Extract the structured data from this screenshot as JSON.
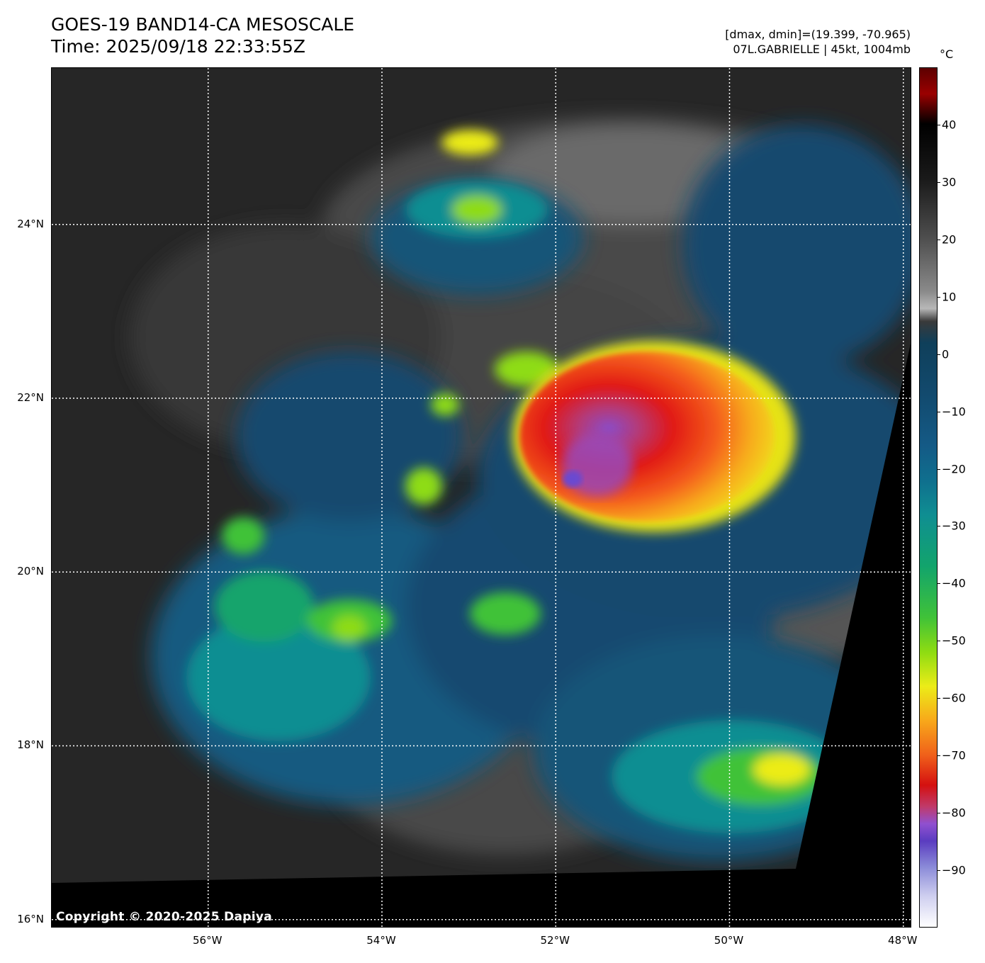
{
  "header": {
    "title": "GOES-19 BAND14-CA MESOSCALE",
    "time": "Time: 2025/09/18 22:33:55Z",
    "range_line": "[dmax, dmin]=(19.399, -70.965)",
    "storm_line": "07L.GABRIELLE | 45kt, 1004mb"
  },
  "map": {
    "extent": {
      "lon_min": -57.8,
      "lon_max": -47.9,
      "lat_min": 15.9,
      "lat_max": 25.8
    },
    "lat_ticks": [
      {
        "value": 24,
        "label": "24°N"
      },
      {
        "value": 22,
        "label": "22°N"
      },
      {
        "value": 20,
        "label": "20°N"
      },
      {
        "value": 18,
        "label": "18°N"
      },
      {
        "value": 16,
        "label": "16°N"
      }
    ],
    "lon_ticks": [
      {
        "value": -56,
        "label": "56°W"
      },
      {
        "value": -54,
        "label": "54°W"
      },
      {
        "value": -52,
        "label": "52°W"
      },
      {
        "value": -50,
        "label": "50°W"
      },
      {
        "value": -48,
        "label": "48°W"
      }
    ],
    "gridlines": true,
    "copyright": "Copyright © 2020-2025 Dapiya"
  },
  "colorbar": {
    "unit": "°C",
    "range": [
      -100,
      50
    ],
    "ticks": [
      {
        "value": 40,
        "label": "40"
      },
      {
        "value": 30,
        "label": "30"
      },
      {
        "value": 20,
        "label": "20"
      },
      {
        "value": 10,
        "label": "10"
      },
      {
        "value": 0,
        "label": "0"
      },
      {
        "value": -10,
        "label": "−10"
      },
      {
        "value": -20,
        "label": "−20"
      },
      {
        "value": -30,
        "label": "−30"
      },
      {
        "value": -40,
        "label": "−40"
      },
      {
        "value": -50,
        "label": "−50"
      },
      {
        "value": -60,
        "label": "−60"
      },
      {
        "value": -70,
        "label": "−70"
      },
      {
        "value": -80,
        "label": "−80"
      },
      {
        "value": -90,
        "label": "−90"
      }
    ]
  }
}
